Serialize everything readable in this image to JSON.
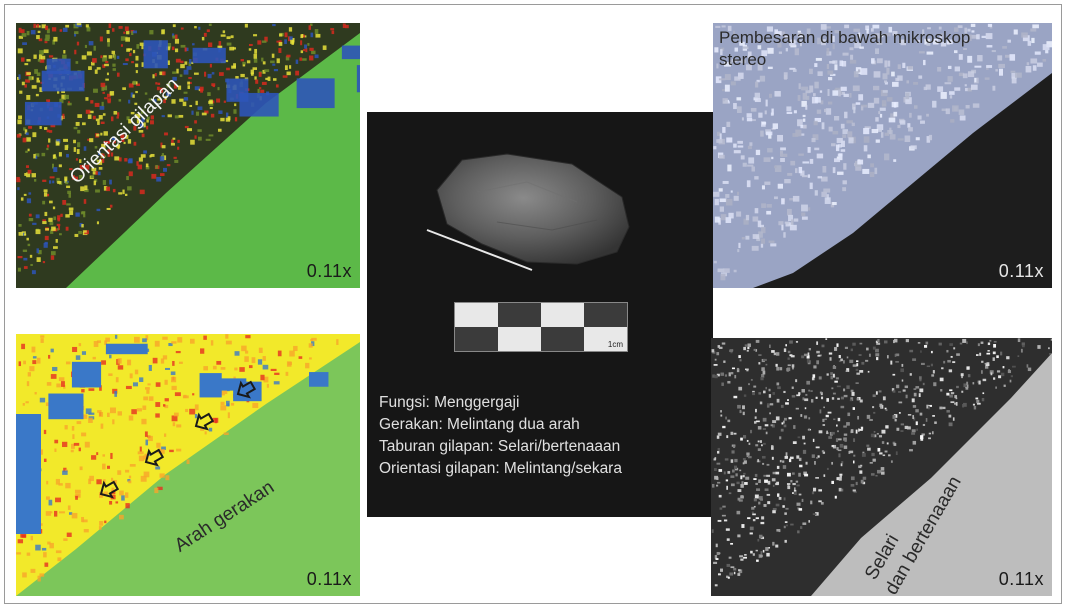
{
  "panels": {
    "top_left": {
      "label": "Orientasi gilapan",
      "scale": "0.11x",
      "colors": {
        "background": "#5cb948",
        "texture_red": "#d62a1f",
        "texture_yellow": "#e6e03a",
        "texture_blue": "#2d55b8"
      }
    },
    "bottom_left": {
      "label": "Arah gerakan",
      "scale": "0.11x",
      "colors": {
        "background": "#7cc65a",
        "texture_yellow": "#f2e92a",
        "texture_red": "#e63020",
        "texture_blue": "#3a78c8"
      }
    },
    "center": {
      "scale_unit": "1cm",
      "caption": [
        "Fungsi: Menggergaji",
        "Gerakan: Melintang dua arah",
        "Taburan gilapan: Selari/bertenaaan",
        "Orientasi gilapan: Melintang/sekara"
      ]
    },
    "top_right": {
      "title": "Pembesaran di bawah mikroskop stereo",
      "scale": "0.11x"
    },
    "bottom_right": {
      "label_line1": "Selari",
      "label_line2": "dan bertenaaan",
      "scale": "0.11x"
    }
  }
}
